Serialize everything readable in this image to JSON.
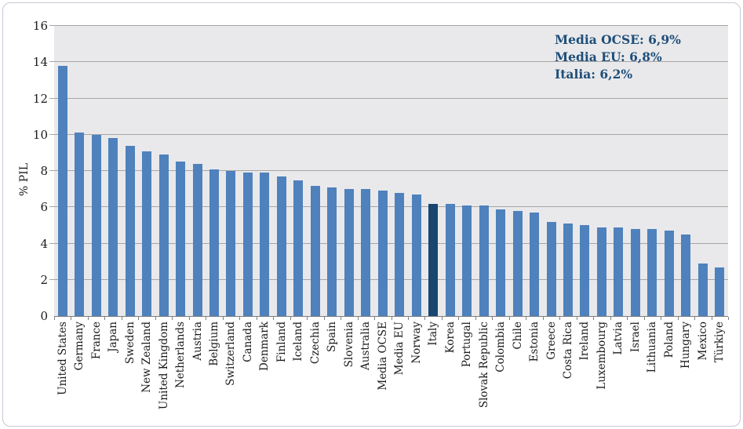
{
  "chart_data": {
    "type": "bar",
    "title": "",
    "xlabel": "",
    "ylabel": "% PIL",
    "ylim": [
      0,
      16
    ],
    "yticks": [
      0,
      2,
      4,
      6,
      8,
      10,
      12,
      14,
      16
    ],
    "grid": true,
    "legend_position": "none",
    "categories": [
      "United States",
      "Germany",
      "France",
      "Japan",
      "Sweden",
      "New Zealand",
      "United Kingdom",
      "Netherlands",
      "Austria",
      "Belgium",
      "Switzerland",
      "Canada",
      "Denmark",
      "Finland",
      "Iceland",
      "Czechia",
      "Spain",
      "Slovenia",
      "Australia",
      "Media OCSE",
      "Media EU",
      "Norway",
      "Italy",
      "Korea",
      "Portugal",
      "Slovak Republic",
      "Colombia",
      "Chile",
      "Estonia",
      "Greece",
      "Costa Rica",
      "Ireland",
      "Luxembourg",
      "Latvia",
      "Israel",
      "Lithuania",
      "Poland",
      "Hungary",
      "Mexico",
      "Türkiye"
    ],
    "values": [
      13.8,
      10.1,
      10.0,
      9.8,
      9.4,
      9.1,
      8.9,
      8.5,
      8.4,
      8.1,
      8.0,
      7.9,
      7.9,
      7.7,
      7.5,
      7.2,
      7.1,
      7.0,
      7.0,
      6.9,
      6.8,
      6.7,
      6.2,
      6.2,
      6.1,
      6.1,
      5.9,
      5.8,
      5.7,
      5.2,
      5.1,
      5.0,
      4.9,
      4.9,
      4.8,
      4.8,
      4.7,
      4.5,
      2.9,
      2.7
    ],
    "highlight_category": "Italy",
    "colors": {
      "bar": "#4f81bd",
      "highlight_bar": "#17466f",
      "plot_background": "#e9e9eb",
      "gridline": "#a6a6a6",
      "axis_line": "#7f7f7f",
      "annotation_text": "#1f4e79",
      "tick_text": "#1a1a1a"
    },
    "annotations": [
      {
        "text": "Media OCSE: 6,9%"
      },
      {
        "text": "Media EU: 6,8%"
      },
      {
        "text": "Italia: 6,2%"
      }
    ]
  }
}
